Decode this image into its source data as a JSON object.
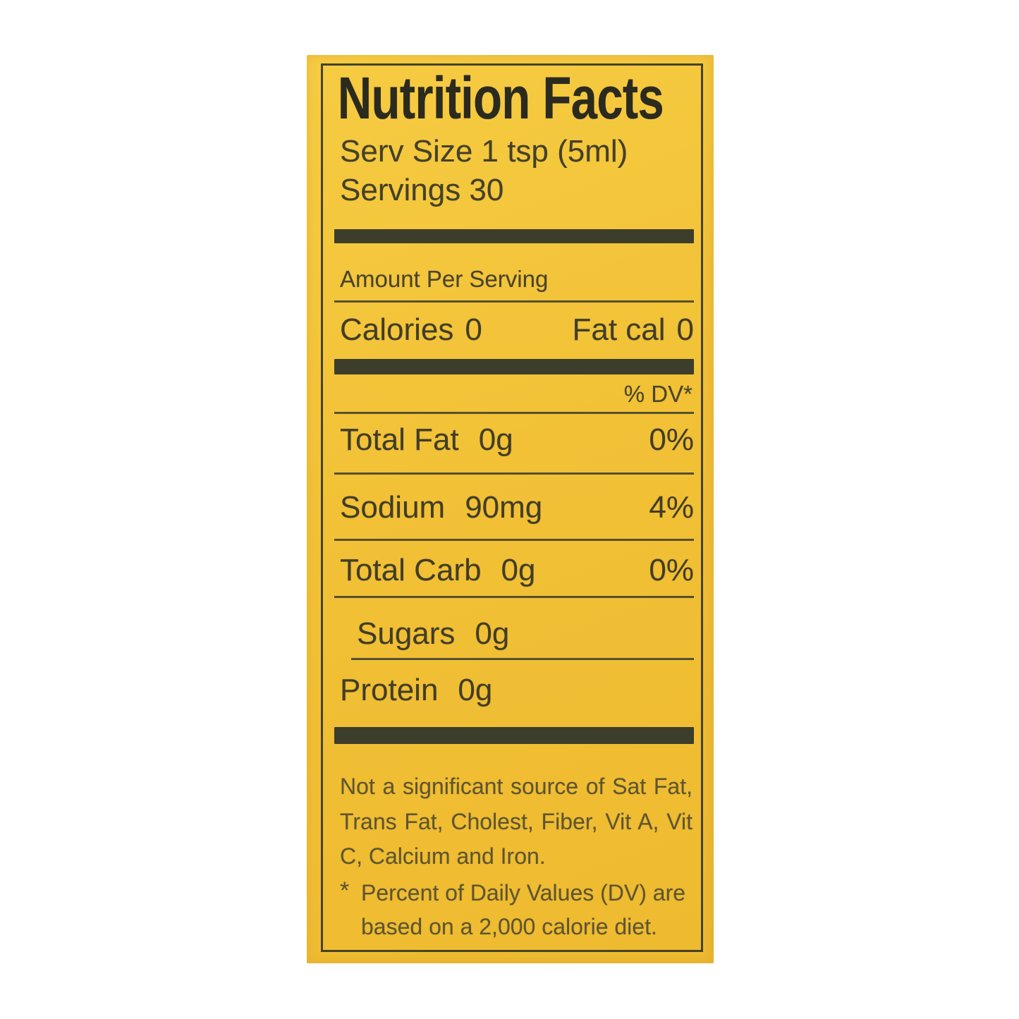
{
  "page": {
    "background": "#ffffff"
  },
  "nutrition_label": {
    "title": "Nutrition Facts",
    "serving_size_line": "Serv Size 1 tsp (5ml)",
    "servings_line": "Servings 30",
    "amount_per_serving_header": "Amount Per Serving",
    "calories": {
      "label": "Calories",
      "value": "0"
    },
    "fat_calories": {
      "label": "Fat cal",
      "value": "0"
    },
    "daily_value_header": "% DV*",
    "rows": [
      {
        "name": "Total Fat",
        "amount": "0g",
        "daily_value": "0%"
      },
      {
        "name": "Sodium",
        "amount": "90mg",
        "daily_value": "4%"
      },
      {
        "name": "Total Carb",
        "amount": "0g",
        "daily_value": "0%"
      },
      {
        "name": "Sugars",
        "amount": "0g",
        "daily_value": ""
      },
      {
        "name": "Protein",
        "amount": "0g",
        "daily_value": ""
      }
    ],
    "footnote_not_significant": "Not a significant source of Sat Fat, Trans Fat, Cholest, Fiber, Vit A, Vit C, Calcium and Iron.",
    "footnote_dv_marker": "*",
    "footnote_dv_text": "Percent of Daily Values (DV) are based on a 2,000 calorie diet.",
    "colors": {
      "label_background": "#f2c136",
      "ink": "#46422b",
      "title_ink": "#2b2a1e",
      "divider_bar": "#3c3d2a"
    }
  }
}
